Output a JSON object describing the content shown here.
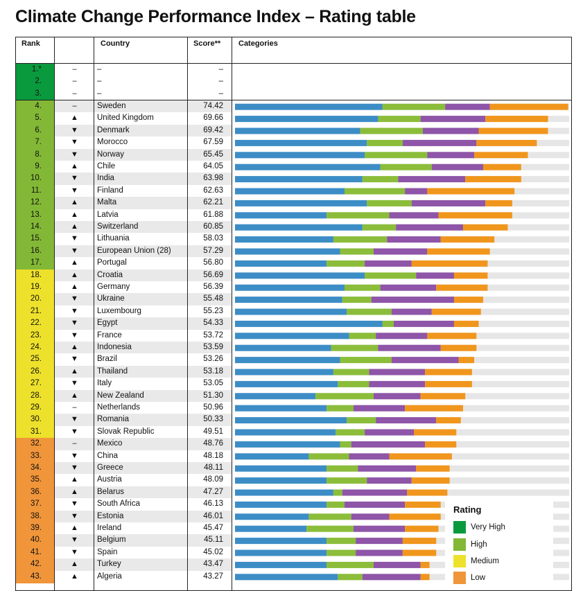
{
  "title": "Climate Change Performance Index – Rating table",
  "headers": {
    "rank": "Rank",
    "country": "Country",
    "score": "Score**",
    "categories": "Categories"
  },
  "colors": {
    "very_high": "#0a9a3e",
    "high": "#82b835",
    "medium": "#ede12b",
    "low": "#f0953a",
    "seg1": "#3c8dc6",
    "seg2": "#8bbd3a",
    "seg3": "#8e55a8",
    "seg4": "#f0961d",
    "track": "#e6e6e6"
  },
  "legend": {
    "title": "Rating",
    "items": [
      {
        "label": "Very High",
        "color": "#0a9a3e"
      },
      {
        "label": "High",
        "color": "#82b835"
      },
      {
        "label": "Medium",
        "color": "#ede12b"
      },
      {
        "label": "Low",
        "color": "#f0953a"
      }
    ]
  },
  "chart_data": {
    "type": "bar",
    "stacked": true,
    "rows": [
      {
        "rank": "1.*",
        "trend": "–",
        "country": "–",
        "score": "–",
        "rating": "very_high",
        "segments": []
      },
      {
        "rank": "2.",
        "trend": "–",
        "country": "–",
        "score": "–",
        "rating": "very_high",
        "segments": []
      },
      {
        "rank": "3.",
        "trend": "–",
        "country": "–",
        "score": "–",
        "rating": "very_high",
        "segments": []
      },
      {
        "rank": "4.",
        "trend": "–",
        "country": "Sweden",
        "score": "74.42",
        "rating": "high",
        "segments": [
          33.0,
          14.0,
          10.0,
          17.5
        ]
      },
      {
        "rank": "5.",
        "trend": "▲",
        "country": "United Kingdom",
        "score": "69.66",
        "rating": "high",
        "segments": [
          32.0,
          9.5,
          14.5,
          14.0
        ]
      },
      {
        "rank": "6.",
        "trend": "▼",
        "country": "Denmark",
        "score": "69.42",
        "rating": "high",
        "segments": [
          28.0,
          14.0,
          12.5,
          15.5
        ]
      },
      {
        "rank": "7.",
        "trend": "▼",
        "country": "Morocco",
        "score": "67.59",
        "rating": "high",
        "segments": [
          29.5,
          8.0,
          16.5,
          13.5
        ]
      },
      {
        "rank": "8.",
        "trend": "▼",
        "country": "Norway",
        "score": "65.45",
        "rating": "high",
        "segments": [
          29.0,
          14.0,
          10.5,
          12.0
        ]
      },
      {
        "rank": "9.",
        "trend": "▲",
        "country": "Chile",
        "score": "64.05",
        "rating": "high",
        "segments": [
          32.5,
          11.5,
          11.5,
          8.5
        ]
      },
      {
        "rank": "10.",
        "trend": "▼",
        "country": "India",
        "score": "63.98",
        "rating": "high",
        "segments": [
          28.5,
          8.0,
          15.0,
          12.5
        ]
      },
      {
        "rank": "11.",
        "trend": "▼",
        "country": "Finland",
        "score": "62.63",
        "rating": "high",
        "segments": [
          24.5,
          13.5,
          5.0,
          19.5
        ]
      },
      {
        "rank": "12.",
        "trend": "▲",
        "country": "Malta",
        "score": "62.21",
        "rating": "high",
        "segments": [
          29.5,
          10.0,
          16.5,
          6.0
        ]
      },
      {
        "rank": "13.",
        "trend": "▲",
        "country": "Latvia",
        "score": "61.88",
        "rating": "high",
        "segments": [
          20.5,
          14.0,
          11.0,
          16.5
        ]
      },
      {
        "rank": "14.",
        "trend": "▲",
        "country": "Switzerland",
        "score": "60.85",
        "rating": "high",
        "segments": [
          28.5,
          7.5,
          15.0,
          10.0
        ]
      },
      {
        "rank": "15.",
        "trend": "▼",
        "country": "Lithuania",
        "score": "58.03",
        "rating": "high",
        "segments": [
          22.0,
          12.0,
          12.0,
          12.0
        ]
      },
      {
        "rank": "16.",
        "trend": "▼",
        "country": "European Union (28)",
        "score": "57.29",
        "rating": "high",
        "segments": [
          23.5,
          7.5,
          12.0,
          14.0
        ]
      },
      {
        "rank": "17.",
        "trend": "▲",
        "country": "Portugal",
        "score": "56.80",
        "rating": "high",
        "segments": [
          20.5,
          8.5,
          10.5,
          17.0
        ]
      },
      {
        "rank": "18.",
        "trend": "▲",
        "country": "Croatia",
        "score": "56.69",
        "rating": "medium",
        "segments": [
          29.0,
          11.5,
          8.5,
          7.5
        ]
      },
      {
        "rank": "19.",
        "trend": "▲",
        "country": "Germany",
        "score": "56.39",
        "rating": "medium",
        "segments": [
          24.5,
          8.0,
          12.5,
          11.5
        ]
      },
      {
        "rank": "20.",
        "trend": "▼",
        "country": "Ukraine",
        "score": "55.48",
        "rating": "medium",
        "segments": [
          24.0,
          6.5,
          18.5,
          6.5
        ]
      },
      {
        "rank": "21.",
        "trend": "▼",
        "country": "Luxembourg",
        "score": "55.23",
        "rating": "medium",
        "segments": [
          25.0,
          10.0,
          9.0,
          11.0
        ]
      },
      {
        "rank": "22.",
        "trend": "▼",
        "country": "Egypt",
        "score": "54.33",
        "rating": "medium",
        "segments": [
          33.0,
          2.5,
          13.5,
          5.5
        ]
      },
      {
        "rank": "23.",
        "trend": "▼",
        "country": "France",
        "score": "53.72",
        "rating": "medium",
        "segments": [
          25.5,
          6.0,
          11.5,
          11.0
        ]
      },
      {
        "rank": "24.",
        "trend": "▲",
        "country": "Indonesia",
        "score": "53.59",
        "rating": "medium",
        "segments": [
          21.5,
          10.5,
          14.0,
          8.0
        ]
      },
      {
        "rank": "25.",
        "trend": "▼",
        "country": "Brazil",
        "score": "53.26",
        "rating": "medium",
        "segments": [
          23.5,
          11.5,
          15.0,
          3.5
        ]
      },
      {
        "rank": "26.",
        "trend": "▲",
        "country": "Thailand",
        "score": "53.18",
        "rating": "medium",
        "segments": [
          22.0,
          8.0,
          12.5,
          10.5
        ]
      },
      {
        "rank": "27.",
        "trend": "▼",
        "country": "Italy",
        "score": "53.05",
        "rating": "medium",
        "segments": [
          23.0,
          7.0,
          12.5,
          10.5
        ]
      },
      {
        "rank": "28.",
        "trend": "▲",
        "country": "New Zealand",
        "score": "51.30",
        "rating": "medium",
        "segments": [
          18.0,
          13.0,
          10.5,
          10.0
        ]
      },
      {
        "rank": "29.",
        "trend": "–",
        "country": "Netherlands",
        "score": "50.96",
        "rating": "medium",
        "segments": [
          20.5,
          6.0,
          11.5,
          13.0
        ]
      },
      {
        "rank": "30.",
        "trend": "▼",
        "country": "Romania",
        "score": "50.33",
        "rating": "medium",
        "segments": [
          25.0,
          6.5,
          13.5,
          5.5
        ]
      },
      {
        "rank": "31.",
        "trend": "▼",
        "country": "Slovak Republic",
        "score": "49.51",
        "rating": "medium",
        "segments": [
          22.5,
          6.5,
          11.0,
          9.5
        ]
      },
      {
        "rank": "32.",
        "trend": "–",
        "country": "Mexico",
        "score": "48.76",
        "rating": "low",
        "segments": [
          23.5,
          2.5,
          16.5,
          7.0
        ]
      },
      {
        "rank": "33.",
        "trend": "▼",
        "country": "China",
        "score": "48.18",
        "rating": "low",
        "segments": [
          16.5,
          9.0,
          9.0,
          14.0
        ]
      },
      {
        "rank": "34.",
        "trend": "▼",
        "country": "Greece",
        "score": "48.11",
        "rating": "low",
        "segments": [
          20.5,
          7.0,
          13.0,
          7.5
        ]
      },
      {
        "rank": "35.",
        "trend": "▲",
        "country": "Austria",
        "score": "48.09",
        "rating": "low",
        "segments": [
          20.5,
          9.0,
          10.0,
          8.5
        ]
      },
      {
        "rank": "36.",
        "trend": "▲",
        "country": "Belarus",
        "score": "47.27",
        "rating": "low",
        "segments": [
          22.0,
          2.0,
          14.5,
          9.0
        ]
      },
      {
        "rank": "37.",
        "trend": "▼",
        "country": "South Africa",
        "score": "46.13",
        "rating": "low",
        "segments": [
          20.5,
          4.0,
          13.5,
          8.0
        ]
      },
      {
        "rank": "38.",
        "trend": "▼",
        "country": "Estonia",
        "score": "46.01",
        "rating": "low",
        "segments": [
          16.5,
          9.5,
          8.5,
          11.5
        ]
      },
      {
        "rank": "39.",
        "trend": "▲",
        "country": "Ireland",
        "score": "45.47",
        "rating": "low",
        "segments": [
          16.0,
          10.5,
          11.5,
          7.5
        ]
      },
      {
        "rank": "40.",
        "trend": "▼",
        "country": "Belgium",
        "score": "45.11",
        "rating": "low",
        "segments": [
          20.5,
          6.5,
          10.5,
          7.5
        ]
      },
      {
        "rank": "41.",
        "trend": "▼",
        "country": "Spain",
        "score": "45.02",
        "rating": "low",
        "segments": [
          20.5,
          6.5,
          10.5,
          7.5
        ]
      },
      {
        "rank": "42.",
        "trend": "▲",
        "country": "Turkey",
        "score": "43.47",
        "rating": "low",
        "segments": [
          20.5,
          10.5,
          10.5,
          2.0
        ]
      },
      {
        "rank": "43.",
        "trend": "▲",
        "country": "Algeria",
        "score": "43.27",
        "rating": "low",
        "segments": [
          23.0,
          5.5,
          13.0,
          2.0
        ]
      }
    ]
  }
}
